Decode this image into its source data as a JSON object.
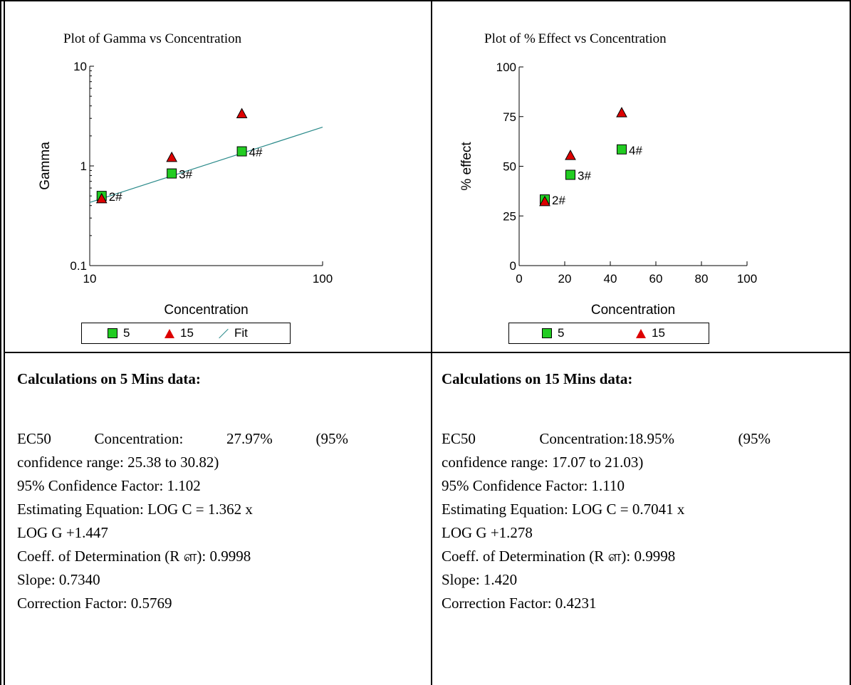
{
  "charts": [
    {
      "title": "Plot of Gamma vs Concentration",
      "xlabel": "Concentration",
      "ylabel": "Gamma",
      "legend": [
        {
          "label": "5",
          "marker": "square",
          "color": "#22cc22"
        },
        {
          "label": "15",
          "marker": "triangle",
          "color": "#dd0000"
        },
        {
          "label": "Fit",
          "marker": "line",
          "color": "#2a8a8a"
        }
      ]
    },
    {
      "title": "Plot of % Effect vs Concentration",
      "xlabel": "Concentration",
      "ylabel": "% effect",
      "legend": [
        {
          "label": "5",
          "marker": "square",
          "color": "#22cc22"
        },
        {
          "label": "15",
          "marker": "triangle",
          "color": "#dd0000"
        }
      ]
    }
  ],
  "chart_data": [
    {
      "type": "scatter",
      "title": "Plot of Gamma vs Concentration",
      "xlabel": "Concentration",
      "ylabel": "Gamma",
      "xscale": "log",
      "yscale": "log",
      "xlim": [
        10,
        100
      ],
      "ylim": [
        0.1,
        10
      ],
      "xticks": [
        "10",
        "100"
      ],
      "yticks": [
        "0.1",
        "1",
        "10"
      ],
      "legend_position": "bottom",
      "series": [
        {
          "name": "5",
          "marker": "square",
          "color": "#22cc22",
          "points": [
            {
              "x": 11.25,
              "y": 0.5,
              "label": "2#"
            },
            {
              "x": 22.5,
              "y": 0.84,
              "label": "3#"
            },
            {
              "x": 45,
              "y": 1.4,
              "label": "4#"
            }
          ]
        },
        {
          "name": "15",
          "marker": "triangle",
          "color": "#dd0000",
          "points": [
            {
              "x": 11.25,
              "y": 0.47
            },
            {
              "x": 22.5,
              "y": 1.22
            },
            {
              "x": 45,
              "y": 3.35
            }
          ]
        },
        {
          "name": "Fit",
          "type": "line",
          "color": "#2a8a8a",
          "points": [
            {
              "x": 10,
              "y": 0.43
            },
            {
              "x": 100,
              "y": 2.45
            }
          ]
        }
      ]
    },
    {
      "type": "scatter",
      "title": "Plot of % Effect vs Concentration",
      "xlabel": "Concentration",
      "ylabel": "% effect",
      "xlim": [
        0,
        100
      ],
      "ylim": [
        0,
        100
      ],
      "xticks": [
        "0",
        "20",
        "40",
        "60",
        "80",
        "100"
      ],
      "yticks": [
        "0",
        "25",
        "50",
        "75",
        "100"
      ],
      "legend_position": "bottom",
      "series": [
        {
          "name": "5",
          "marker": "square",
          "color": "#22cc22",
          "points": [
            {
              "x": 11.25,
              "y": 33.3,
              "label": "2#"
            },
            {
              "x": 22.5,
              "y": 45.7,
              "label": "3#"
            },
            {
              "x": 45,
              "y": 58.5,
              "label": "4#"
            }
          ]
        },
        {
          "name": "15",
          "marker": "triangle",
          "color": "#dd0000",
          "points": [
            {
              "x": 11.25,
              "y": 32.3
            },
            {
              "x": 22.5,
              "y": 55.5
            },
            {
              "x": 45,
              "y": 77
            }
          ]
        }
      ]
    }
  ],
  "calc": [
    {
      "heading": "Calculations on 5 Mins data:",
      "ec50_parts": [
        "EC50",
        "Concentration:",
        "27.97%",
        "(95%"
      ],
      "lines": [
        "confidence range: 25.38 to 30.82)",
        "95% Confidence Factor: 1.102",
        "Estimating Equation: LOG C = 1.362 x",
        "LOG G +1.447",
        "Coeff. of Determination (R ள): 0.9998",
        "Slope: 0.7340",
        "Correction Factor: 0.5769"
      ]
    },
    {
      "heading": "Calculations on 15 Mins data:",
      "ec50_parts": [
        "EC50",
        "Concentration:18.95%",
        "(95%"
      ],
      "lines": [
        "confidence range: 17.07 to 21.03)",
        "95% Confidence Factor: 1.110",
        "Estimating Equation: LOG C = 0.7041 x",
        "LOG G +1.278",
        "Coeff. of Determination (R ள): 0.9998",
        "Slope: 1.420",
        "Correction Factor: 0.4231"
      ]
    }
  ]
}
